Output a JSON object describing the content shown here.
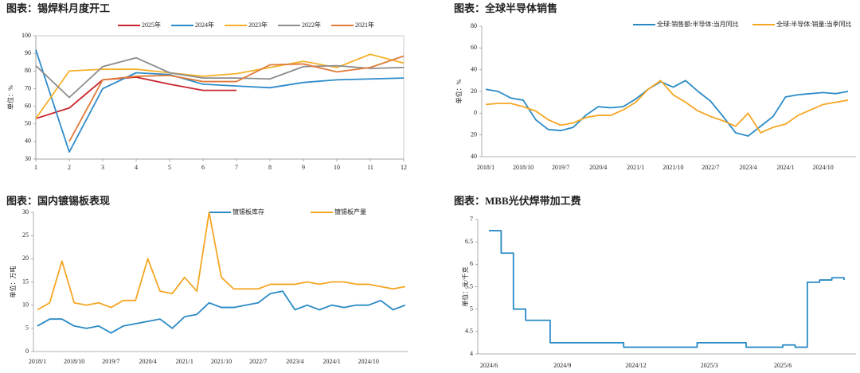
{
  "chart_data": [
    {
      "type": "line",
      "title": "图表：锡焊料月度开工",
      "y_label": "单位：%",
      "x": [
        1,
        2,
        3,
        4,
        5,
        6,
        7,
        8,
        9,
        10,
        11,
        12
      ],
      "xlim": [
        1,
        12
      ],
      "xticks": [
        1,
        2,
        3,
        4,
        5,
        6,
        7,
        8,
        9,
        10,
        11,
        12
      ],
      "ylim": [
        30,
        100
      ],
      "yticks": [
        30,
        40,
        50,
        60,
        70,
        80,
        90,
        100
      ],
      "series": [
        {
          "name": "2025年",
          "color": "#c8232b",
          "values": [
            53,
            59,
            75,
            76.5,
            72.5,
            69,
            69,
            null,
            null,
            null,
            null,
            null
          ]
        },
        {
          "name": "2024年",
          "color": "#2e8bc9",
          "values": [
            92,
            34,
            70,
            79,
            78,
            72.5,
            71.5,
            70.5,
            73.5,
            75,
            75.5,
            76
          ]
        },
        {
          "name": "2023年",
          "color": "#f5b12a",
          "values": [
            53,
            80,
            81,
            81,
            79,
            77,
            78.5,
            82,
            85.5,
            82,
            89.5,
            84.5
          ]
        },
        {
          "name": "2022年",
          "color": "#8c8c8c",
          "values": [
            83,
            65,
            82.5,
            87.5,
            79,
            76,
            76,
            75.5,
            82.5,
            83,
            81.5,
            82
          ]
        },
        {
          "name": "2021年",
          "color": "#e07b39",
          "values": [
            null,
            40,
            75,
            77,
            77.5,
            74,
            74,
            83.5,
            84,
            79.5,
            82,
            88.5
          ]
        }
      ]
    },
    {
      "type": "line",
      "title": "图表：全球半导体销售",
      "y_label": "单位：%",
      "categories": [
        "2018/1",
        null,
        null,
        "2018/10",
        null,
        null,
        "2019/7",
        null,
        null,
        "2020/4",
        null,
        null,
        "2021/1",
        null,
        null,
        "2021/10",
        null,
        null,
        "2022/7",
        null,
        null,
        "2023/4",
        null,
        null,
        "2024/1",
        null,
        null,
        "2024/10",
        null,
        null
      ],
      "ylim": [
        -40,
        80
      ],
      "yticks": [
        {
          "value": -40,
          "label": "40"
        },
        {
          "value": -20,
          "label": "20"
        },
        0,
        20,
        40,
        60,
        80
      ],
      "series": [
        {
          "name": "全球:销售额:半导体:当月同比",
          "color": "#2a8ac6",
          "values": [
            22,
            20,
            14,
            12,
            -6,
            -15,
            -16,
            -13,
            -2,
            6,
            5,
            6,
            13,
            22,
            29,
            24,
            30,
            20,
            11,
            -3,
            -18,
            -21,
            -12,
            -3,
            15,
            17,
            18,
            19,
            18,
            20
          ]
        },
        {
          "name": "全球:半导体:销量:当季同比",
          "color": "#f5a623",
          "values": [
            8,
            9,
            9,
            6,
            2,
            -6,
            -11,
            -9,
            -4,
            -2,
            -2,
            3,
            10,
            22,
            30,
            17,
            10,
            2,
            -3,
            -7,
            -12,
            0,
            -18,
            -13,
            -10,
            -2,
            3,
            8,
            10,
            12
          ]
        }
      ]
    },
    {
      "type": "line",
      "title": "图表：国内镀锡板表现",
      "y_label": "单位：万吨",
      "categories": [
        "2018/1",
        null,
        null,
        "2018/10",
        null,
        null,
        "2019/7",
        null,
        null,
        "2020/4",
        null,
        null,
        "2021/1",
        null,
        null,
        "2021/10",
        null,
        null,
        "2022/7",
        null,
        null,
        "2023/4",
        null,
        null,
        "2024/1",
        null,
        null,
        "2024/10",
        null,
        null,
        null
      ],
      "ylim": [
        0,
        30
      ],
      "yticks": [
        0,
        5,
        10,
        15,
        20,
        25,
        30
      ],
      "series": [
        {
          "name": "镀锡板库存",
          "color": "#2a8ac6",
          "values": [
            5.5,
            7,
            7,
            5.5,
            5,
            5.5,
            4,
            5.5,
            6,
            6.5,
            7,
            5,
            7.5,
            8,
            10.5,
            9.5,
            9.5,
            10,
            10.5,
            12.5,
            13,
            9,
            10,
            9,
            10,
            9.5,
            10,
            10,
            11,
            9,
            10
          ]
        },
        {
          "name": "镀锡板产量",
          "color": "#f5a623",
          "values": [
            9,
            10.5,
            19.5,
            10.5,
            10,
            10.5,
            9.5,
            11,
            11,
            20,
            13,
            12.5,
            16,
            13,
            30,
            16,
            13.5,
            13.5,
            13.5,
            14.5,
            14.5,
            14.5,
            15,
            14.5,
            15,
            15,
            14.5,
            14.5,
            14,
            13.5,
            14
          ]
        }
      ]
    },
    {
      "type": "line",
      "step": true,
      "title": "图表：MBB光伏焊带加工费",
      "y_label": "单位：元/千克",
      "categories": [
        "2024/6",
        null,
        null,
        null,
        null,
        null,
        "2024/9",
        null,
        null,
        null,
        null,
        null,
        "2024/12",
        null,
        null,
        null,
        null,
        null,
        "2025/3",
        null,
        null,
        null,
        null,
        null,
        "2025/6",
        null,
        null,
        null,
        null,
        null
      ],
      "ylim": [
        4,
        7
      ],
      "yticks": [
        4,
        4.5,
        5,
        5.5,
        6,
        6.5,
        7
      ],
      "color": "#2a8ac6",
      "values": [
        6.75,
        6.25,
        5,
        4.75,
        4.75,
        4.25,
        4.25,
        4.25,
        4.25,
        4.25,
        4.25,
        4.15,
        4.15,
        4.15,
        4.15,
        4.15,
        4.15,
        4.25,
        4.25,
        4.25,
        4.25,
        4.15,
        4.15,
        4.15,
        4.2,
        4.15,
        5.6,
        5.65,
        5.7,
        5.65
      ]
    }
  ]
}
